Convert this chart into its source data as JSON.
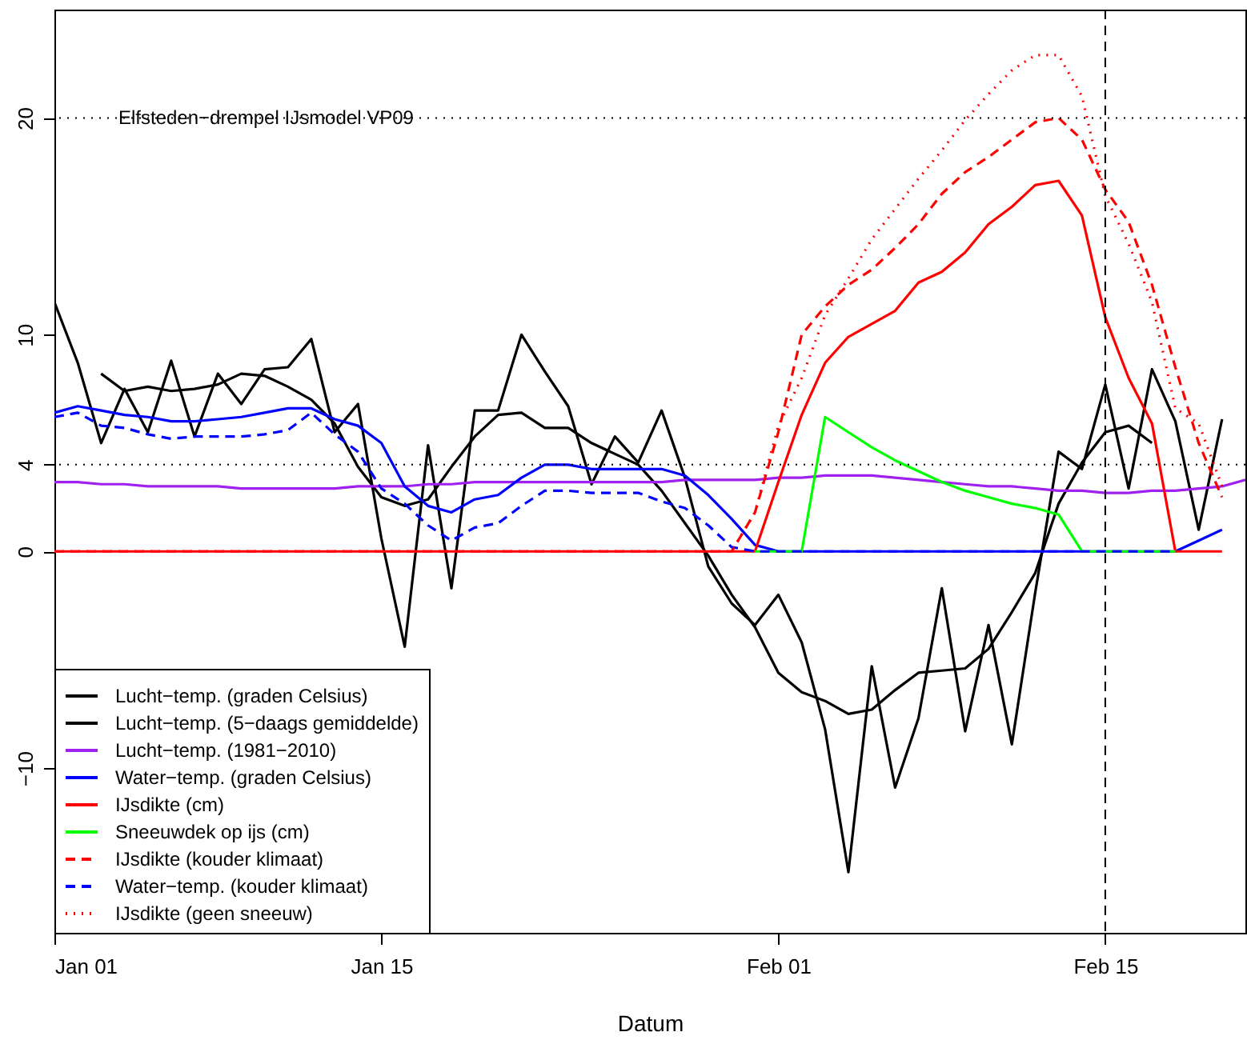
{
  "chart_data": {
    "type": "line",
    "xlabel": "Datum",
    "x": [
      "--01-01",
      "--01-02",
      "--01-03",
      "--01-04",
      "--01-05",
      "--01-06",
      "--01-07",
      "--01-08",
      "--01-09",
      "--01-10",
      "--01-11",
      "--01-12",
      "--01-13",
      "--01-14",
      "--01-15",
      "--01-16",
      "--01-17",
      "--01-18",
      "--01-19",
      "--01-20",
      "--01-21",
      "--01-22",
      "--01-23",
      "--01-24",
      "--01-25",
      "--01-26",
      "--01-27",
      "--01-28",
      "--01-29",
      "--01-30",
      "--01-31",
      "--02-01",
      "--02-02",
      "--02-03",
      "--02-04",
      "--02-05",
      "--02-06",
      "--02-07",
      "--02-08",
      "--02-09",
      "--02-10",
      "--02-11",
      "--02-12",
      "--02-13",
      "--02-14",
      "--02-15",
      "--02-16",
      "--02-17",
      "--02-18",
      "--02-19",
      "--02-20",
      "--02-21"
    ],
    "xlim": [
      "--01-01",
      "--02-21"
    ],
    "xticks": [
      {
        "value": "--01-01",
        "label": "Jan 01"
      },
      {
        "value": "--01-15",
        "label": "Jan 15"
      },
      {
        "value": "--02-01",
        "label": "Feb 01"
      },
      {
        "value": "--02-15",
        "label": "Feb 15"
      }
    ],
    "ylim": [
      -17.6,
      25
    ],
    "yticks": [
      -10,
      0,
      4,
      10,
      20
    ],
    "legend": "bottom left",
    "series": [
      {
        "name": "Lucht−temp. (graden Celsius)",
        "color": "#000000",
        "line_style": "solid",
        "values": [
          11.5,
          8.7,
          5.0,
          7.5,
          5.5,
          8.8,
          5.3,
          8.2,
          6.8,
          8.4,
          8.5,
          9.8,
          5.5,
          6.8,
          0.6,
          -4.4,
          4.9,
          -1.7,
          6.5,
          6.5,
          10.0,
          8.3,
          6.7,
          3.1,
          5.3,
          4.1,
          6.5,
          3.4,
          -0.7,
          -2.4,
          -3.4,
          -2.0,
          -4.2,
          -8.2,
          -14.8,
          -5.3,
          -10.9,
          -7.7,
          -1.7,
          -8.3,
          -3.4,
          -8.9,
          -1.9,
          4.6,
          3.8,
          7.7,
          2.9,
          8.4,
          6.0,
          1.0,
          6.1,
          null
        ]
      },
      {
        "name": "Lucht−temp. (5−daags gemiddelde)",
        "color": "#000000",
        "line_style": "solid",
        "values": [
          null,
          null,
          8.2,
          7.4,
          7.6,
          7.4,
          7.5,
          7.7,
          8.2,
          8.1,
          7.6,
          7.0,
          5.9,
          3.9,
          2.5,
          2.1,
          2.4,
          3.9,
          5.3,
          6.3,
          6.4,
          5.7,
          5.7,
          5.0,
          4.5,
          4.0,
          2.8,
          1.3,
          -0.2,
          -2.0,
          -3.5,
          -5.6,
          -6.5,
          -6.9,
          -7.5,
          -7.3,
          -6.4,
          -5.6,
          -5.5,
          -5.4,
          -4.5,
          -2.8,
          -1.0,
          2.2,
          4.1,
          5.5,
          5.8,
          5.0,
          null,
          null,
          null,
          null
        ]
      },
      {
        "name": "Lucht−temp. (1981−2010)",
        "color": "#a020f0",
        "line_style": "solid",
        "values": [
          3.2,
          3.2,
          3.1,
          3.1,
          3.0,
          3.0,
          3.0,
          3.0,
          2.9,
          2.9,
          2.9,
          2.9,
          2.9,
          3.0,
          3.0,
          3.0,
          3.1,
          3.1,
          3.2,
          3.2,
          3.2,
          3.2,
          3.2,
          3.2,
          3.2,
          3.2,
          3.2,
          3.3,
          3.3,
          3.3,
          3.3,
          3.4,
          3.4,
          3.5,
          3.5,
          3.5,
          3.4,
          3.3,
          3.2,
          3.1,
          3.0,
          3.0,
          2.9,
          2.8,
          2.8,
          2.7,
          2.7,
          2.8,
          2.8,
          2.9,
          3.0,
          3.3
        ]
      },
      {
        "name": "Water−temp. (graden Celsius)",
        "color": "#0000ff",
        "line_style": "solid",
        "values": [
          6.4,
          6.7,
          6.5,
          6.3,
          6.2,
          6.0,
          6.0,
          6.1,
          6.2,
          6.4,
          6.6,
          6.6,
          6.1,
          5.8,
          5.0,
          3.0,
          2.1,
          1.8,
          2.4,
          2.6,
          3.4,
          4.0,
          4.0,
          3.8,
          3.8,
          3.8,
          3.8,
          3.5,
          2.6,
          1.5,
          0.3,
          0,
          0,
          0,
          0,
          0,
          0,
          0,
          0,
          0,
          0,
          0,
          0,
          0,
          0,
          0,
          0,
          0,
          0,
          0.5,
          1.0,
          null
        ]
      },
      {
        "name": "IJsdikte (cm)",
        "color": "#ff0000",
        "line_style": "solid",
        "values": [
          0,
          0,
          0,
          0,
          0,
          0,
          0,
          0,
          0,
          0,
          0,
          0,
          0,
          0,
          0,
          0,
          0,
          0,
          0,
          0,
          0,
          0,
          0,
          0,
          0,
          0,
          0,
          0,
          0,
          0,
          0,
          3.2,
          6.3,
          8.7,
          9.9,
          10.5,
          11.1,
          12.4,
          12.9,
          13.8,
          15.1,
          15.9,
          16.9,
          17.1,
          15.5,
          10.8,
          8.0,
          5.9,
          0,
          0,
          0,
          null
        ]
      },
      {
        "name": "Sneeuwdek op ijs (cm)",
        "color": "#00ff00",
        "line_style": "solid",
        "values": [
          null,
          null,
          null,
          null,
          null,
          null,
          null,
          null,
          null,
          null,
          null,
          null,
          null,
          null,
          null,
          null,
          null,
          null,
          null,
          null,
          null,
          null,
          null,
          null,
          null,
          null,
          null,
          null,
          null,
          null,
          0,
          0,
          0,
          6.2,
          5.5,
          4.8,
          4.2,
          3.7,
          3.2,
          2.8,
          2.5,
          2.2,
          2.0,
          1.7,
          0,
          0,
          0,
          0,
          0,
          null,
          null,
          null
        ]
      },
      {
        "name": "IJsdikte (kouder klimaat)",
        "color": "#ff0000",
        "line_style": "dashed",
        "values": [
          0,
          0,
          0,
          0,
          0,
          0,
          0,
          0,
          0,
          0,
          0,
          0,
          0,
          0,
          0,
          0,
          0,
          0,
          0,
          0,
          0,
          0,
          0,
          0,
          0,
          0,
          0,
          0,
          0,
          0,
          1.8,
          5.5,
          10.0,
          11.3,
          12.3,
          13.0,
          14.0,
          15.1,
          16.5,
          17.5,
          18.2,
          19.0,
          19.8,
          20.0,
          19.0,
          16.7,
          15.2,
          12.3,
          8.5,
          5.0,
          2.5,
          null
        ]
      },
      {
        "name": "Water−temp. (kouder klimaat)",
        "color": "#0000ff",
        "line_style": "dashed",
        "values": [
          6.2,
          6.4,
          5.8,
          5.7,
          5.4,
          5.2,
          5.3,
          5.3,
          5.3,
          5.4,
          5.6,
          6.4,
          5.4,
          4.6,
          2.9,
          2.2,
          1.2,
          0.5,
          1.1,
          1.3,
          2.1,
          2.8,
          2.8,
          2.7,
          2.7,
          2.7,
          2.3,
          2.0,
          1.2,
          0.2,
          0,
          0,
          0,
          0,
          0,
          0,
          0,
          0,
          0,
          0,
          0,
          0,
          0,
          0,
          0,
          0,
          0,
          0,
          0,
          null,
          null,
          null
        ]
      },
      {
        "name": "IJsdikte (geen sneeuw)",
        "color": "#ff0000",
        "line_style": "dotted",
        "values": [
          0,
          0,
          0,
          0,
          0,
          0,
          0,
          0,
          0,
          0,
          0,
          0,
          0,
          0,
          0,
          0,
          0,
          0,
          0,
          0,
          0,
          0,
          0,
          0,
          0,
          0,
          0,
          0,
          0,
          0,
          1.8,
          5.8,
          8.0,
          10.9,
          12.6,
          14.4,
          15.8,
          17.2,
          18.5,
          19.9,
          21.1,
          22.2,
          22.9,
          22.9,
          21.0,
          16.4,
          14.2,
          11.5,
          6.6,
          5.9,
          3.0,
          null
        ]
      }
    ],
    "ref_lines": [
      {
        "axis": "y",
        "value": 20,
        "label": "Elfsteden−drempel IJsmodel VP09",
        "color": "#000000",
        "line_style": "dotted"
      },
      {
        "axis": "y",
        "value": 4,
        "color": "#000000",
        "line_style": "dotted"
      },
      {
        "axis": "x",
        "value": "--02-15",
        "color": "#000000",
        "line_style": "dashed"
      }
    ]
  }
}
